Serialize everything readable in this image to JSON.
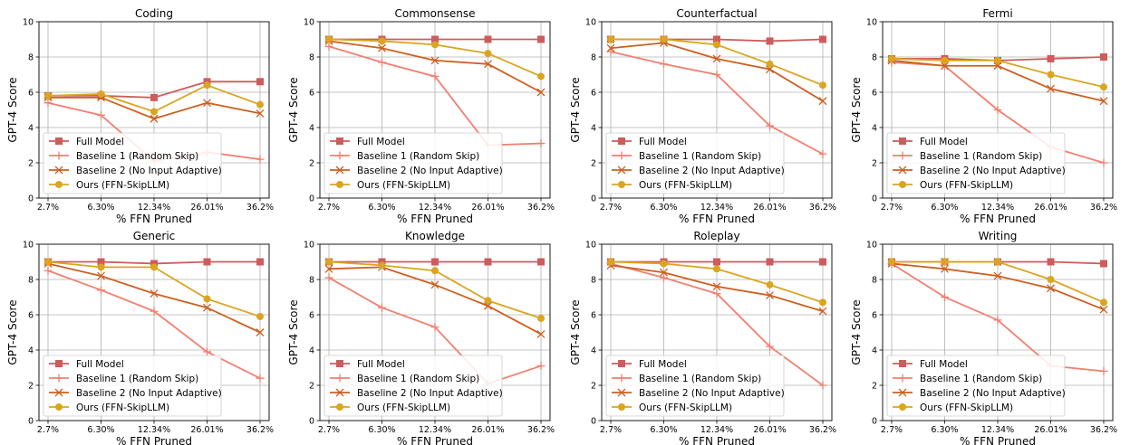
{
  "chart_data": {
    "type": "line",
    "layout": "2x4 grid of subplots",
    "x_categories": [
      "2.7%",
      "6.30%",
      "12.34%",
      "26.01%",
      "36.2%"
    ],
    "xlabel": "% FFN Pruned",
    "ylabel": "GPT-4 Score",
    "ylim": [
      0,
      10
    ],
    "y_ticks": [
      0,
      2,
      4,
      6,
      8,
      10
    ],
    "grid": true,
    "legend_position": "lower-left",
    "legend": [
      {
        "name": "Full Model",
        "color": "#cd5c5c",
        "marker": "square"
      },
      {
        "name": "Baseline 1 (Random Skip)",
        "color": "#f08070",
        "marker": "plus"
      },
      {
        "name": "Baseline 2 (No Input Adaptive)",
        "color": "#cc6020",
        "marker": "x"
      },
      {
        "name": "Ours (FFN-SkipLLM)",
        "color": "#daa520",
        "marker": "circle"
      }
    ],
    "panels": [
      {
        "title": "Coding",
        "series": [
          [
            5.8,
            5.8,
            5.7,
            6.6,
            6.6
          ],
          [
            5.4,
            4.7,
            2.1,
            2.6,
            2.2
          ],
          [
            5.7,
            5.7,
            4.5,
            5.4,
            4.8
          ],
          [
            5.8,
            5.9,
            4.9,
            6.4,
            5.3
          ]
        ]
      },
      {
        "title": "Commonsense",
        "series": [
          [
            9.0,
            9.0,
            9.0,
            9.0,
            9.0
          ],
          [
            8.6,
            7.7,
            6.9,
            3.0,
            3.1
          ],
          [
            8.9,
            8.5,
            7.8,
            7.6,
            6.0
          ],
          [
            9.0,
            8.9,
            8.7,
            8.2,
            6.9
          ]
        ]
      },
      {
        "title": "Counterfactual",
        "series": [
          [
            9.0,
            9.0,
            9.0,
            8.9,
            9.0
          ],
          [
            8.3,
            7.6,
            7.0,
            4.1,
            2.5
          ],
          [
            8.5,
            8.8,
            7.9,
            7.3,
            5.5
          ],
          [
            9.0,
            9.0,
            8.7,
            7.6,
            6.4
          ]
        ]
      },
      {
        "title": "Fermi",
        "series": [
          [
            7.9,
            7.9,
            7.8,
            7.9,
            8.0
          ],
          [
            7.7,
            7.5,
            5.0,
            2.9,
            2.0
          ],
          [
            7.8,
            7.5,
            7.5,
            6.2,
            5.5
          ],
          [
            7.9,
            7.8,
            7.8,
            7.0,
            6.3
          ]
        ]
      },
      {
        "title": "Generic",
        "series": [
          [
            9.0,
            9.0,
            8.9,
            9.0,
            9.0
          ],
          [
            8.5,
            7.4,
            6.2,
            3.9,
            2.4
          ],
          [
            8.9,
            8.2,
            7.2,
            6.4,
            5.0
          ],
          [
            9.0,
            8.7,
            8.7,
            6.9,
            5.9
          ]
        ]
      },
      {
        "title": "Knowledge",
        "series": [
          [
            9.0,
            9.0,
            9.0,
            9.0,
            9.0
          ],
          [
            8.1,
            6.4,
            5.3,
            2.1,
            3.1
          ],
          [
            8.6,
            8.7,
            7.7,
            6.5,
            4.9
          ],
          [
            9.0,
            8.8,
            8.5,
            6.8,
            5.8
          ]
        ]
      },
      {
        "title": "Roleplay",
        "series": [
          [
            9.0,
            9.0,
            9.0,
            9.0,
            9.0
          ],
          [
            8.9,
            8.1,
            7.2,
            4.2,
            2.0
          ],
          [
            8.8,
            8.4,
            7.6,
            7.1,
            6.2
          ],
          [
            9.0,
            8.9,
            8.6,
            7.7,
            6.7
          ]
        ]
      },
      {
        "title": "Writing",
        "series": [
          [
            9.0,
            9.0,
            9.0,
            9.0,
            8.9
          ],
          [
            8.9,
            7.0,
            5.7,
            3.1,
            2.8
          ],
          [
            8.9,
            8.6,
            8.2,
            7.5,
            6.3
          ],
          [
            9.0,
            9.0,
            9.0,
            8.0,
            6.7
          ]
        ]
      }
    ]
  }
}
